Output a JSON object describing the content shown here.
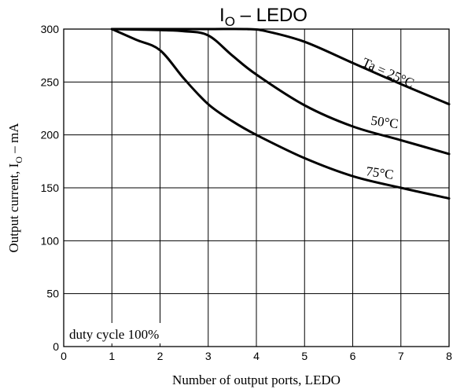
{
  "chart_data": {
    "type": "line",
    "title": {
      "main": "I",
      "sub": "O",
      "rest": " – LEDO"
    },
    "xlabel": "Number of output ports, LEDO",
    "ylabel": {
      "main": "Output current, I",
      "sub": "O",
      "rest": " – mA"
    },
    "xlim": [
      0,
      8
    ],
    "ylim": [
      0,
      300
    ],
    "x_ticks": [
      0,
      1,
      2,
      3,
      4,
      5,
      6,
      7,
      8
    ],
    "y_ticks": [
      0,
      50,
      100,
      150,
      200,
      250,
      300
    ],
    "grid": true,
    "annotation": "duty cycle 100%",
    "series": [
      {
        "name": "Ta = 25°C",
        "x": [
          1,
          2,
          3,
          3.8,
          4.2,
          5,
          6,
          7,
          8
        ],
        "y": [
          300,
          300,
          300,
          300,
          298,
          288,
          268,
          248,
          229
        ]
      },
      {
        "name": "50°C",
        "x": [
          1,
          2,
          2.5,
          3,
          3.5,
          4,
          5,
          6,
          7,
          8
        ],
        "y": [
          300,
          299,
          298,
          294,
          275,
          257,
          228,
          208,
          195,
          182
        ]
      },
      {
        "name": "75°C",
        "x": [
          1,
          1.5,
          2,
          2.5,
          3,
          3.5,
          4,
          5,
          6,
          7,
          8
        ],
        "y": [
          300,
          290,
          280,
          253,
          229,
          213,
          200,
          178,
          161,
          150,
          140
        ]
      }
    ]
  }
}
